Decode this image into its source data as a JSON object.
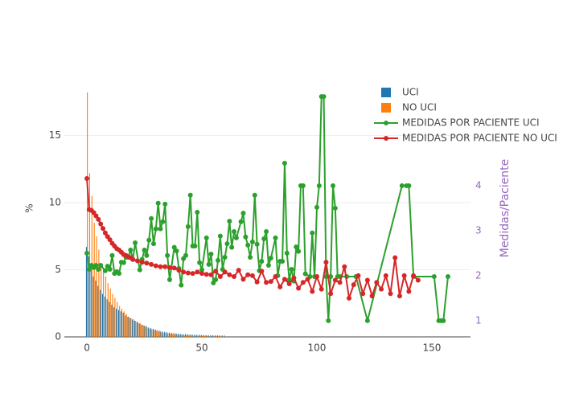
{
  "chart_data": {
    "type": "combo",
    "y_label": "%",
    "y2_label": "Medidas/Paciente",
    "xlim": [
      -9.8,
      166.8
    ],
    "xticks": [
      0,
      50,
      100,
      150
    ],
    "ylim": [
      0,
      19.1
    ],
    "yticks": [
      0,
      5,
      10,
      15
    ],
    "y2lim": [
      0.64,
      6.34
    ],
    "y2ticks": [
      1,
      2,
      3,
      4
    ],
    "grid": true,
    "legend": "top-right",
    "series": [
      {
        "name": "UCI",
        "type": "bar",
        "color": "#1f77b4",
        "x": [
          0,
          1,
          2,
          3,
          4,
          5,
          6,
          7,
          8,
          9,
          10,
          11,
          12,
          13,
          14,
          15,
          16,
          17,
          18,
          19,
          20,
          21,
          22,
          23,
          24,
          25,
          26,
          27,
          28,
          29,
          30,
          31,
          32,
          33,
          34,
          35,
          36,
          37,
          38,
          39,
          40,
          41,
          42,
          43,
          44,
          45,
          46,
          47,
          48,
          49,
          50,
          51,
          52,
          53,
          54,
          55,
          56,
          57,
          58,
          59,
          60
        ],
        "values": [
          6.7,
          6,
          5,
          4.5,
          4.2,
          3.8,
          3.5,
          3.2,
          3,
          2.8,
          2.6,
          2.4,
          2.2,
          2.1,
          2.0,
          1.9,
          1.8,
          1.6,
          1.5,
          1.4,
          1.3,
          1.2,
          1.1,
          1.0,
          0.9,
          0.85,
          0.8,
          0.7,
          0.65,
          0.6,
          0.55,
          0.5,
          0.45,
          0.4,
          0.38,
          0.35,
          0.32,
          0.3,
          0.28,
          0.26,
          0.24,
          0.22,
          0.21,
          0.2,
          0.19,
          0.18,
          0.17,
          0.16,
          0.15,
          0.15,
          0.14,
          0.14,
          0.13,
          0.13,
          0.12,
          0.12,
          0.11,
          0.11,
          0.1,
          0.1,
          0.1
        ]
      },
      {
        "name": "NO UCI",
        "type": "bar",
        "color": "#ff7f0e",
        "x": [
          0,
          1,
          2,
          3,
          4,
          5,
          6,
          7,
          8,
          9,
          10,
          11,
          12,
          13,
          14,
          15,
          16,
          17,
          18,
          19,
          20,
          21,
          22,
          23,
          24,
          25,
          26,
          27,
          28,
          29,
          30,
          31,
          32,
          33,
          34,
          35,
          36,
          37,
          38,
          39,
          40,
          41,
          42,
          43,
          44,
          45,
          46,
          47,
          48,
          49,
          50,
          51,
          52,
          53,
          54,
          55,
          56,
          57,
          58,
          59,
          60
        ],
        "values": [
          18.2,
          12.2,
          10.5,
          8.5,
          7.5,
          6.5,
          5.5,
          5,
          4.5,
          4,
          3.6,
          3.2,
          2.9,
          2.6,
          2.3,
          2.1,
          1.9,
          1.7,
          1.5,
          1.4,
          1.3,
          1.2,
          1.1,
          1.0,
          0.9,
          0.8,
          0.7,
          0.6,
          0.55,
          0.5,
          0.45,
          0.4,
          0.35,
          0.3,
          0.28,
          0.25,
          0.23,
          0.21,
          0.19,
          0.17,
          0.15,
          0.14,
          0.13,
          0.12,
          0.11,
          0.1,
          0.09,
          0.09,
          0.08,
          0.08,
          0.07,
          0.07,
          0.06,
          0.06,
          0.06,
          0.05,
          0.05,
          0.05,
          0.04,
          0.04,
          0.04
        ]
      },
      {
        "name": "MEDIDAS POR PACIENTE UCI",
        "type": "line",
        "axis": "y2",
        "color": "#2ca02c",
        "x": [
          0,
          1,
          2,
          3,
          4,
          5,
          6,
          8,
          9,
          10,
          11,
          12,
          13,
          14,
          15,
          16,
          17,
          18,
          19,
          20,
          21,
          23,
          24,
          25,
          26,
          27,
          28,
          29,
          30,
          31,
          32,
          33,
          34,
          35,
          36,
          38,
          39,
          40,
          41,
          42,
          43,
          44,
          45,
          46,
          47,
          48,
          49,
          50,
          52,
          53,
          54,
          55,
          56,
          57,
          58,
          59,
          60,
          61,
          62,
          63,
          64,
          65,
          67,
          68,
          69,
          70,
          71,
          72,
          73,
          74,
          75,
          76,
          77,
          78,
          79,
          80,
          82,
          83,
          84,
          85,
          86,
          87,
          88,
          89,
          90,
          91,
          92,
          93,
          94,
          95,
          97,
          98,
          99,
          100,
          101,
          102,
          103,
          104,
          105,
          106,
          107,
          108,
          109,
          110,
          113,
          117,
          122,
          137,
          139,
          140,
          142,
          151,
          153,
          154,
          155,
          157
        ],
        "values": [
          2.5,
          2.14,
          2.23,
          2.18,
          2.23,
          2.14,
          2.23,
          2.11,
          2.21,
          2.14,
          2.45,
          2.05,
          2.09,
          2.05,
          2.3,
          2.29,
          2.41,
          2.41,
          2.57,
          2.36,
          2.73,
          2.13,
          2.36,
          2.57,
          2.45,
          2.79,
          3.27,
          2.71,
          3.04,
          3.61,
          3.04,
          3.2,
          3.59,
          2.45,
          1.91,
          2.63,
          2.55,
          2.16,
          1.79,
          2.38,
          2.45,
          3.09,
          3.79,
          2.66,
          2.66,
          3.41,
          2.29,
          2.13,
          2.84,
          2.25,
          2.48,
          1.84,
          1.91,
          2.34,
          2.88,
          2.14,
          2.41,
          2.71,
          3.21,
          2.63,
          2.98,
          2.84,
          3.2,
          3.39,
          2.86,
          2.68,
          2.41,
          2.75,
          3.79,
          2.7,
          2.11,
          2.32,
          2.82,
          2.98,
          2.23,
          2.39,
          2.84,
          2.0,
          2.32,
          2.32,
          4.5,
          2.5,
          1.91,
          2.14,
          1.88,
          2.64,
          2.54,
          4.0,
          4.0,
          2.04,
          1.98,
          2.95,
          1.98,
          3.52,
          4.0,
          5.98,
          5.98,
          1.98,
          1.0,
          1.98,
          4.0,
          3.5,
          1.98,
          1.98,
          1.98,
          1.98,
          1.0,
          4.0,
          4.0,
          4.0,
          1.98,
          1.98,
          1.0,
          1.0,
          1.0,
          1.98
        ]
      },
      {
        "name": "MEDIDAS POR PACIENTE NO UCI",
        "type": "line",
        "axis": "y2",
        "color": "#d62728",
        "x": [
          0,
          1,
          2,
          3,
          4,
          5,
          6,
          7,
          8,
          9,
          10,
          11,
          12,
          13,
          14,
          15,
          16,
          17,
          18,
          19,
          20,
          22,
          24,
          26,
          28,
          30,
          32,
          34,
          36,
          38,
          40,
          42,
          44,
          46,
          48,
          50,
          52,
          54,
          56,
          58,
          60,
          62,
          64,
          66,
          68,
          70,
          72,
          74,
          76,
          78,
          80,
          82,
          84,
          86,
          88,
          90,
          92,
          94,
          96,
          98,
          100,
          102,
          104,
          106,
          108,
          110,
          112,
          114,
          116,
          118,
          120,
          122,
          124,
          126,
          128,
          130,
          132,
          134,
          136,
          138,
          140,
          142,
          144
        ],
        "values": [
          4.16,
          3.47,
          3.45,
          3.4,
          3.33,
          3.25,
          3.15,
          3.05,
          2.95,
          2.87,
          2.8,
          2.72,
          2.66,
          2.6,
          2.57,
          2.52,
          2.47,
          2.45,
          2.42,
          2.4,
          2.36,
          2.33,
          2.3,
          2.28,
          2.25,
          2.22,
          2.2,
          2.2,
          2.18,
          2.17,
          2.12,
          2.08,
          2.06,
          2.05,
          2.08,
          2.05,
          2.03,
          2.02,
          2.1,
          1.98,
          2.08,
          2.02,
          1.98,
          2.12,
          1.92,
          2.02,
          2.0,
          1.86,
          2.1,
          1.85,
          1.87,
          1.98,
          1.75,
          1.92,
          1.82,
          1.95,
          1.72,
          1.85,
          1.92,
          1.65,
          1.98,
          1.7,
          2.3,
          1.6,
          1.9,
          1.85,
          2.2,
          1.5,
          1.8,
          2.0,
          1.6,
          1.9,
          1.55,
          1.85,
          1.7,
          2.0,
          1.6,
          2.4,
          1.55,
          2.0,
          1.65,
          2.0,
          1.9
        ]
      }
    ]
  }
}
